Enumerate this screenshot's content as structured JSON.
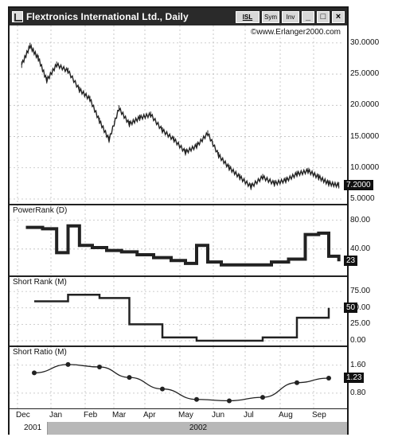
{
  "window": {
    "title": "Flextronics International Ltd., Daily",
    "buttons": {
      "sys": "ISL",
      "sym": "Sym",
      "inv": "Inv",
      "minimize": "_",
      "maximize": "□",
      "close": "×"
    }
  },
  "copyright": "©www.Erlanger2000.com",
  "panels": {
    "price": {
      "ticks": [
        "30.0000",
        "25.0000",
        "20.0000",
        "15.0000",
        "10.0000",
        "5.0000"
      ],
      "last": "7.2000"
    },
    "powerrank": {
      "title": "PowerRank (D)",
      "ticks": [
        "80.00",
        "40.00"
      ],
      "last": "23"
    },
    "shortrank": {
      "title": "Short Rank (M)",
      "ticks": [
        "75.00",
        "50.00",
        "25.00",
        "0.00"
      ],
      "last": "50"
    },
    "shortratio": {
      "title": "Short Ratio (M)",
      "ticks": [
        "1.60",
        "0.80"
      ],
      "last": "1.23"
    }
  },
  "months": [
    "Dec",
    "Jan",
    "Feb",
    "Mar",
    "Apr",
    "May",
    "Jun",
    "Jul",
    "Aug",
    "Sep"
  ],
  "years": [
    "2001",
    "2002"
  ],
  "colors": {
    "titlebar": "#2a2a2a",
    "line": "#222222",
    "grid": "#bdbdbd",
    "yearbar": "#b8b8b8"
  },
  "chart_data": [
    {
      "type": "line",
      "panel": "price",
      "x": [
        "Dec",
        "Dec",
        "Dec",
        "Dec",
        "Jan",
        "Jan",
        "Jan",
        "Feb",
        "Feb",
        "Feb",
        "Mar",
        "Mar",
        "Mar",
        "Apr",
        "Apr",
        "Apr",
        "May",
        "May",
        "May",
        "Jun",
        "Jun",
        "Jun",
        "Jul",
        "Jul",
        "Jul",
        "Aug",
        "Aug",
        "Aug",
        "Sep",
        "Sep",
        "Sep"
      ],
      "values": [
        26.5,
        29.5,
        27.5,
        24.0,
        26.5,
        25.5,
        22.5,
        21.0,
        17.5,
        14.5,
        19.5,
        17.0,
        18.0,
        18.5,
        16.0,
        14.5,
        12.5,
        13.5,
        15.5,
        12.0,
        10.0,
        8.5,
        7.0,
        8.5,
        7.5,
        8.0,
        9.0,
        9.5,
        8.5,
        7.5,
        7.2
      ],
      "ylim": [
        5,
        31
      ],
      "last": 7.2
    },
    {
      "type": "line",
      "panel": "powerrank",
      "x": [
        "Dec",
        "Dec",
        "Jan",
        "Jan",
        "Jan",
        "Feb",
        "Feb",
        "Mar",
        "Mar",
        "Apr",
        "Apr",
        "May",
        "May",
        "May",
        "Jun",
        "Jun",
        "Jul",
        "Jul",
        "Aug",
        "Aug",
        "Sep",
        "Sep",
        "Sep"
      ],
      "values": [
        70,
        68,
        35,
        72,
        45,
        42,
        38,
        36,
        32,
        28,
        24,
        20,
        45,
        22,
        18,
        18,
        18,
        22,
        26,
        60,
        62,
        30,
        23
      ],
      "ylim": [
        10,
        85
      ],
      "last": 23
    },
    {
      "type": "line",
      "panel": "shortrank",
      "x": [
        "Dec",
        "Jan",
        "Feb",
        "Mar",
        "Apr",
        "May",
        "Jun",
        "Jul",
        "Aug",
        "Sep"
      ],
      "values": [
        60,
        70,
        65,
        25,
        5,
        0,
        0,
        5,
        35,
        50
      ],
      "ylim": [
        0,
        80
      ],
      "last": 50
    },
    {
      "type": "line",
      "panel": "shortratio",
      "x": [
        "Dec",
        "Jan",
        "Feb",
        "Mar",
        "Apr",
        "May",
        "Jun",
        "Jul",
        "Aug",
        "Sep"
      ],
      "values": [
        1.38,
        1.62,
        1.55,
        1.25,
        0.92,
        0.62,
        0.58,
        0.68,
        1.1,
        1.23
      ],
      "ylim": [
        0.5,
        1.8
      ],
      "last": 1.23
    }
  ]
}
